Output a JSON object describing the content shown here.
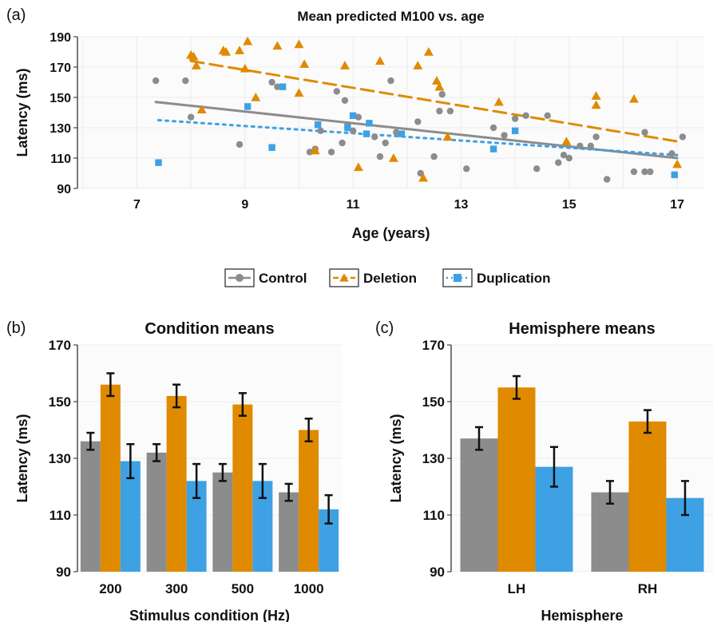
{
  "colors": {
    "control": "#8c8c8c",
    "deletion": "#e08a00",
    "duplication": "#3ea1e3"
  },
  "panel_letters": [
    "(a)",
    "(b)",
    "(c)"
  ],
  "legend": {
    "items": [
      "Control",
      "Deletion",
      "Duplication"
    ]
  },
  "chart_data": [
    {
      "panel": "a",
      "type": "scatter",
      "title": "Mean predicted M100 vs. age",
      "xlabel": "Age (years)",
      "ylabel": "Latency (ms)",
      "xlim": [
        5.9,
        17.5
      ],
      "ylim": [
        90,
        190
      ],
      "xticks": [
        7,
        9,
        11,
        13,
        15,
        17
      ],
      "yticks": [
        90,
        110,
        130,
        150,
        170,
        190
      ],
      "grid": true,
      "series": [
        {
          "name": "Control",
          "marker": "circle",
          "trend": [
            [
              7.35,
              147
            ],
            [
              17.0,
              110
            ]
          ],
          "points": [
            [
              7.35,
              161
            ],
            [
              7.9,
              161
            ],
            [
              8.0,
              137
            ],
            [
              8.9,
              119
            ],
            [
              9.5,
              160
            ],
            [
              9.6,
              157
            ],
            [
              10.2,
              114
            ],
            [
              10.3,
              116
            ],
            [
              10.4,
              128
            ],
            [
              10.6,
              114
            ],
            [
              10.7,
              154
            ],
            [
              10.8,
              120
            ],
            [
              10.85,
              148
            ],
            [
              10.9,
              132
            ],
            [
              11.0,
              128
            ],
            [
              11.1,
              137
            ],
            [
              11.4,
              124
            ],
            [
              11.5,
              111
            ],
            [
              11.6,
              120
            ],
            [
              11.7,
              161
            ],
            [
              11.8,
              127
            ],
            [
              12.2,
              134
            ],
            [
              12.25,
              100
            ],
            [
              12.5,
              111
            ],
            [
              12.6,
              141
            ],
            [
              12.65,
              152
            ],
            [
              12.8,
              141
            ],
            [
              13.1,
              103
            ],
            [
              13.6,
              130
            ],
            [
              13.8,
              125
            ],
            [
              14.0,
              136
            ],
            [
              14.2,
              138
            ],
            [
              14.4,
              103
            ],
            [
              14.6,
              138
            ],
            [
              14.8,
              107
            ],
            [
              14.9,
              112
            ],
            [
              15.0,
              110
            ],
            [
              15.2,
              118
            ],
            [
              15.4,
              118
            ],
            [
              15.5,
              124
            ],
            [
              15.7,
              96
            ],
            [
              16.2,
              101
            ],
            [
              16.4,
              127
            ],
            [
              16.4,
              101
            ],
            [
              16.5,
              101
            ],
            [
              16.9,
              113
            ],
            [
              17.1,
              124
            ]
          ]
        },
        {
          "name": "Deletion",
          "marker": "triangle",
          "trend": [
            [
              8.0,
              174
            ],
            [
              17.0,
              121
            ]
          ],
          "points": [
            [
              8.0,
              178
            ],
            [
              8.05,
              177
            ],
            [
              8.1,
              171
            ],
            [
              8.2,
              142
            ],
            [
              8.6,
              181
            ],
            [
              8.65,
              180
            ],
            [
              8.9,
              181
            ],
            [
              9.0,
              169
            ],
            [
              9.05,
              187
            ],
            [
              9.2,
              150
            ],
            [
              9.6,
              184
            ],
            [
              10.0,
              153
            ],
            [
              10.0,
              185
            ],
            [
              10.1,
              172
            ],
            [
              10.3,
              115
            ],
            [
              10.85,
              171
            ],
            [
              11.1,
              104
            ],
            [
              11.5,
              174
            ],
            [
              11.75,
              110
            ],
            [
              12.2,
              171
            ],
            [
              12.3,
              97
            ],
            [
              12.4,
              180
            ],
            [
              12.55,
              161
            ],
            [
              12.6,
              157
            ],
            [
              12.75,
              124
            ],
            [
              13.7,
              147
            ],
            [
              14.95,
              121
            ],
            [
              15.5,
              151
            ],
            [
              15.5,
              145
            ],
            [
              16.2,
              149
            ],
            [
              17.0,
              106
            ]
          ]
        },
        {
          "name": "Duplication",
          "marker": "square",
          "trend": [
            [
              7.4,
              135
            ],
            [
              17.0,
              112
            ]
          ],
          "points": [
            [
              7.4,
              107
            ],
            [
              9.05,
              144
            ],
            [
              9.5,
              117
            ],
            [
              9.7,
              157
            ],
            [
              10.35,
              132
            ],
            [
              10.9,
              130
            ],
            [
              11.0,
              138
            ],
            [
              11.25,
              126
            ],
            [
              11.3,
              133
            ],
            [
              11.9,
              126
            ],
            [
              13.6,
              116
            ],
            [
              14.0,
              128
            ],
            [
              16.95,
              99
            ]
          ]
        }
      ]
    },
    {
      "panel": "b",
      "type": "bar",
      "title": "Condition means",
      "xlabel": "Stimulus condition (Hz)",
      "ylabel": "Latency (ms)",
      "ylim": [
        90,
        170
      ],
      "yticks": [
        90,
        110,
        130,
        150,
        170
      ],
      "categories": [
        "200",
        "300",
        "500",
        "1000"
      ],
      "series": [
        {
          "name": "Control",
          "values": [
            136,
            132,
            125,
            118
          ],
          "errors": [
            3,
            3,
            3,
            3
          ]
        },
        {
          "name": "Deletion",
          "values": [
            156,
            152,
            149,
            140
          ],
          "errors": [
            4,
            4,
            4,
            4
          ]
        },
        {
          "name": "Duplication",
          "values": [
            129,
            122,
            122,
            112
          ],
          "errors": [
            6,
            6,
            6,
            5
          ]
        }
      ]
    },
    {
      "panel": "c",
      "type": "bar",
      "title": "Hemisphere means",
      "xlabel": "Hemisphere",
      "ylabel": "Latency (ms)",
      "ylim": [
        90,
        170
      ],
      "yticks": [
        90,
        110,
        130,
        150,
        170
      ],
      "categories": [
        "LH",
        "RH"
      ],
      "series": [
        {
          "name": "Control",
          "values": [
            137,
            118
          ],
          "errors": [
            4,
            4
          ]
        },
        {
          "name": "Deletion",
          "values": [
            155,
            143
          ],
          "errors": [
            4,
            4
          ]
        },
        {
          "name": "Duplication",
          "values": [
            127,
            116
          ],
          "errors": [
            7,
            6
          ]
        }
      ]
    }
  ]
}
